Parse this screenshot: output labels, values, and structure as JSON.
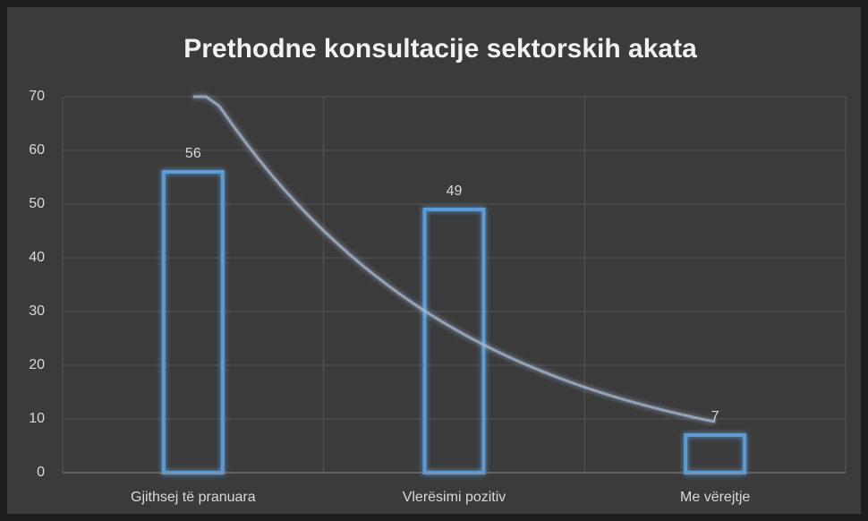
{
  "chart_data": {
    "type": "bar",
    "title": "Prethodne konsultacije sektorskih akata",
    "categories": [
      "Gjithsej të pranuara",
      "Vlerësimi pozitiv",
      "Me vërejtje"
    ],
    "values": [
      56,
      49,
      7
    ],
    "color": "#5b9bd5",
    "ylim": [
      0,
      70
    ],
    "yticks": [
      0,
      10,
      20,
      30,
      40,
      50,
      60,
      70
    ],
    "grid": true,
    "trendline": "exponential"
  }
}
